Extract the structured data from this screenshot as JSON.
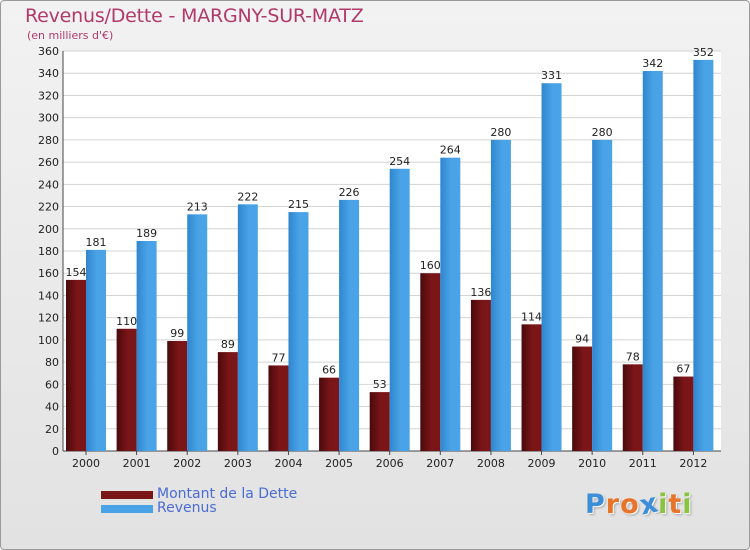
{
  "chart_data": {
    "type": "bar",
    "title": "Revenus/Dette - MARGNY-SUR-MATZ",
    "subtitle": "(en milliers d'€)",
    "categories": [
      "2000",
      "2001",
      "2002",
      "2003",
      "2004",
      "2005",
      "2006",
      "2007",
      "2008",
      "2009",
      "2010",
      "2011",
      "2012"
    ],
    "series": [
      {
        "name": "Montant de la Dette",
        "values": [
          154,
          110,
          99,
          89,
          77,
          66,
          53,
          160,
          136,
          114,
          94,
          78,
          67
        ],
        "color": "#7a1518"
      },
      {
        "name": "Revenus",
        "values": [
          181,
          189,
          213,
          222,
          215,
          226,
          254,
          264,
          280,
          331,
          280,
          342,
          352
        ],
        "color": "#4aa3e6"
      }
    ],
    "ylim": [
      0,
      360
    ],
    "ytick_step": 20,
    "grid": true,
    "legend": "bottom-left",
    "data_labels": true
  },
  "logo": {
    "letters": [
      "P",
      "r",
      "o",
      "x",
      "i",
      "t",
      "i"
    ],
    "colors": [
      "#3c8ed8",
      "#e8742a",
      "#e8742a",
      "#3c8ed8",
      "#8ac43f",
      "#e8742a",
      "#8ac43f"
    ]
  }
}
